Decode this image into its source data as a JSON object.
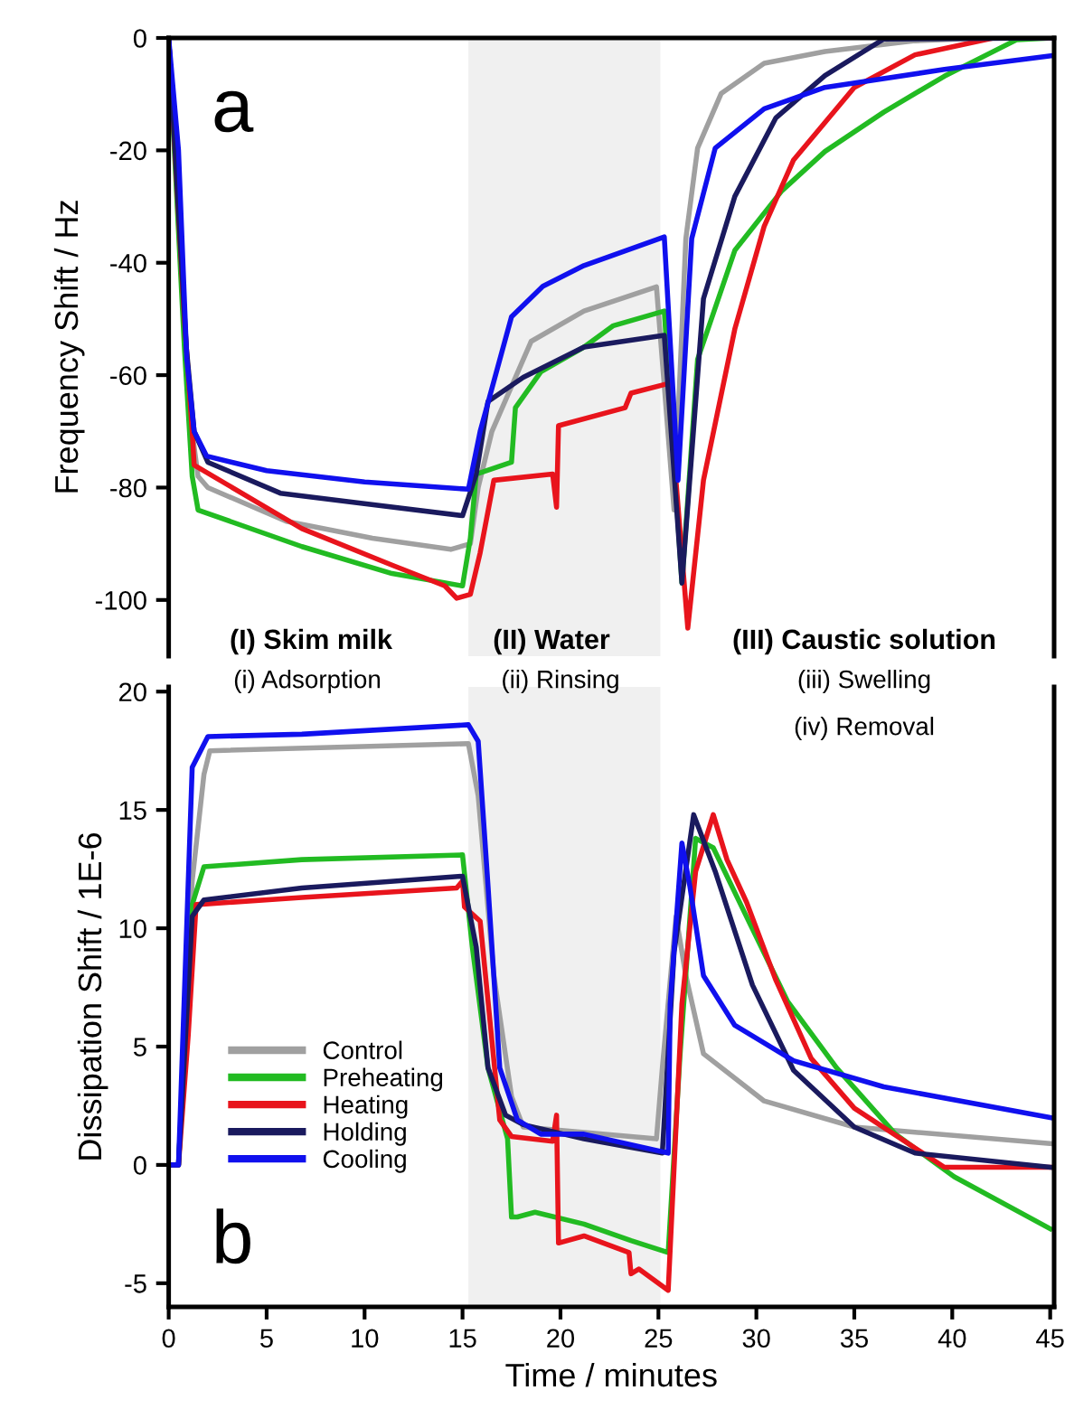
{
  "chart_data": [
    {
      "type": "line",
      "ylabel": "Frequency Shift / Hz",
      "xlim": [
        0,
        45.2
      ],
      "ylim": [
        -110,
        0
      ],
      "yticks": [
        -100,
        -80,
        -60,
        -40,
        -20,
        0
      ],
      "tick_labels": "y",
      "grid": false,
      "legend": false,
      "bands": [
        {
          "axis": "x",
          "from": 15.3,
          "to": 25.1,
          "color": "#f0f0f0"
        }
      ],
      "annotations": [
        "a",
        "(I) Skim milk",
        "(i) Adsorption",
        "(II) Water",
        "(ii) Rinsing",
        "(III) Caustic solution",
        "(iii) Swelling",
        "(iv) Removal"
      ],
      "series": [
        {
          "color": "#a0a0a0",
          "x": [
            0,
            1.0,
            1.5,
            2,
            6,
            10.4,
            14.4,
            15.4,
            15.8,
            16.5,
            18.5,
            21.2,
            24.9,
            25.8,
            26.4,
            27.0,
            28.2,
            30.4,
            33.5,
            38.1,
            41.8,
            45
          ],
          "values": [
            0,
            -65,
            -78,
            -80,
            -86,
            -89,
            -91,
            -90,
            -80,
            -70,
            -54,
            -48.6,
            -44.3,
            -84,
            -35.7,
            -19.6,
            -9.9,
            -4.5,
            -2.4,
            -0.5,
            0,
            0
          ]
        },
        {
          "color": "#22bb22",
          "x": [
            0,
            0.8,
            1.2,
            1.5,
            6.8,
            11.4,
            15.0,
            15.4,
            15.7,
            17.5,
            17.7,
            19.0,
            21.2,
            22.7,
            25.3,
            26.2,
            27.0,
            28.9,
            31.3,
            33.5,
            36.5,
            39.6,
            43.3,
            45
          ],
          "values": [
            0,
            -55,
            -78,
            -84,
            -90.5,
            -95.3,
            -97.5,
            -89,
            -77.6,
            -75.5,
            -65.8,
            -59.4,
            -55,
            -51.2,
            -48.6,
            -97,
            -57.2,
            -37.8,
            -27.2,
            -20.2,
            -13.2,
            -6.8,
            -0.3,
            0
          ]
        },
        {
          "color": "#e8141c",
          "x": [
            0,
            0.8,
            1.2,
            1.3,
            6.8,
            11.4,
            14.1,
            14.7,
            15.4,
            15.9,
            16.6,
            19.6,
            19.8,
            19.9,
            23.3,
            23.6,
            25.5,
            26.5,
            27.3,
            28.9,
            30.4,
            31.9,
            35.0,
            38.1,
            42.1,
            45
          ],
          "values": [
            0,
            -50,
            -70,
            -76,
            -87.3,
            -93.8,
            -97.5,
            -99.7,
            -99,
            -91.6,
            -78.7,
            -77.6,
            -83.5,
            -69,
            -65.8,
            -63.2,
            -61.5,
            -105,
            -78.7,
            -51.8,
            -33.5,
            -21.7,
            -8.8,
            -3,
            0,
            0
          ]
        },
        {
          "color": "#1a1a5e",
          "x": [
            0,
            0.9,
            1.3,
            2,
            5.7,
            9.8,
            15.0,
            15.7,
            16.3,
            18.1,
            21.2,
            25.3,
            26.2,
            27.3,
            28.9,
            31.0,
            33.5,
            36.5,
            45
          ],
          "values": [
            0,
            -55,
            -70,
            -75.5,
            -81,
            -82.8,
            -85,
            -77.6,
            -64.7,
            -60.4,
            -55,
            -52.9,
            -97,
            -46.4,
            -28.2,
            -14.2,
            -6.7,
            -0.2,
            0
          ]
        },
        {
          "color": "#1010ee",
          "x": [
            0,
            0.5,
            0.92,
            1.3,
            1.94,
            5,
            10,
            15.3,
            15.9,
            17.5,
            19.1,
            21.2,
            25.3,
            26.0,
            26.7,
            27.9,
            30.4,
            33.5,
            39.6,
            45
          ],
          "values": [
            0,
            -20,
            -57,
            -70,
            -74.4,
            -77,
            -79,
            -80.3,
            -70,
            -49.6,
            -44.2,
            -40.5,
            -35.4,
            -78.7,
            -35.7,
            -19.6,
            -12.6,
            -8.8,
            -5.6,
            -3.2
          ]
        }
      ]
    },
    {
      "type": "line",
      "xlabel": "Time / minutes",
      "ylabel": "Dissipation Shift / 1E-6",
      "xlim": [
        0,
        45.2
      ],
      "ylim": [
        -6,
        20.2
      ],
      "xticks": [
        0,
        5,
        10,
        15,
        20,
        25,
        30,
        35,
        40,
        45
      ],
      "yticks": [
        -5,
        0,
        5,
        10,
        15,
        20
      ],
      "grid": false,
      "legend": "lower left",
      "bands": [
        {
          "axis": "x",
          "from": 15.3,
          "to": 25.1,
          "color": "#f0f0f0"
        }
      ],
      "annotations": [
        "b"
      ],
      "series": [
        {
          "name": "Control",
          "color": "#a0a0a0",
          "x": [
            0,
            0.5,
            1.2,
            1.8,
            2.1,
            15.3,
            15.8,
            16.6,
            17.5,
            18.1,
            24.9,
            25.2,
            25.9,
            26.4,
            27.3,
            30.4,
            35.0,
            45
          ],
          "values": [
            0,
            0,
            12,
            16.5,
            17.5,
            17.8,
            15.6,
            8.0,
            2.9,
            1.6,
            1.1,
            4.1,
            10.5,
            8.0,
            4.7,
            2.7,
            1.6,
            0.9
          ]
        },
        {
          "name": "Preheating",
          "color": "#22bb22",
          "x": [
            0,
            0.5,
            1.2,
            1.8,
            6.8,
            15.0,
            15.5,
            16.3,
            17.3,
            17.5,
            17.8,
            18.7,
            21.2,
            23.6,
            25.5,
            26.1,
            26.9,
            27.8,
            29.2,
            31.6,
            34.1,
            37.1,
            40.1,
            45
          ],
          "values": [
            0,
            0,
            11,
            12.6,
            12.9,
            13.1,
            9.2,
            4.1,
            1.1,
            -2.2,
            -2.2,
            -2.0,
            -2.5,
            -3.2,
            -3.7,
            4.6,
            13.8,
            13.4,
            11.0,
            6.9,
            4.1,
            1.3,
            -0.5,
            -2.7
          ]
        },
        {
          "name": "Heating",
          "color": "#e8141c",
          "x": [
            0,
            0.5,
            1.0,
            1.4,
            6.8,
            14.7,
            15.0,
            15.1,
            15.9,
            16.9,
            17.5,
            19.6,
            19.8,
            19.9,
            21.2,
            23.5,
            23.6,
            24.0,
            25.5,
            26.2,
            26.9,
            27.8,
            28.5,
            29.5,
            31.0,
            32.8,
            35.0,
            39.6,
            45
          ],
          "values": [
            0,
            0,
            5.5,
            11,
            11.3,
            11.7,
            12.0,
            10.9,
            10.3,
            1.9,
            1.2,
            1.0,
            2.1,
            -3.3,
            -3.0,
            -3.7,
            -4.6,
            -4.4,
            -5.3,
            6.8,
            12.4,
            14.8,
            12.9,
            11.1,
            7.8,
            4.5,
            2.4,
            -0.1,
            -0.1
          ]
        },
        {
          "name": "Holding",
          "color": "#1a1a5e",
          "x": [
            0,
            0.5,
            1.2,
            1.8,
            6.8,
            15.0,
            15.7,
            16.3,
            17.2,
            18.1,
            21.2,
            25.2,
            25.8,
            26.8,
            27.9,
            29.8,
            31.9,
            35.0,
            38.1,
            45
          ],
          "values": [
            0,
            0,
            10.5,
            11.2,
            11.7,
            12.2,
            9.2,
            4.1,
            2.1,
            1.7,
            1.1,
            0.5,
            9.0,
            14.8,
            12.4,
            7.6,
            4.0,
            1.6,
            0.5,
            -0.1
          ]
        },
        {
          "name": "Cooling",
          "color": "#1010ee",
          "x": [
            0,
            0.5,
            1.2,
            2.0,
            6.8,
            15.3,
            15.8,
            16.3,
            16.9,
            17.8,
            19.0,
            21.2,
            25.5,
            25.6,
            26.2,
            26.6,
            27.3,
            28.9,
            31.9,
            36.5,
            45
          ],
          "values": [
            0,
            0,
            16.8,
            18.1,
            18.2,
            18.6,
            17.9,
            11.8,
            4.1,
            1.9,
            1.3,
            1.3,
            0.5,
            6.8,
            13.6,
            11.8,
            8.0,
            5.9,
            4.4,
            3.3,
            2.0
          ]
        }
      ]
    }
  ]
}
